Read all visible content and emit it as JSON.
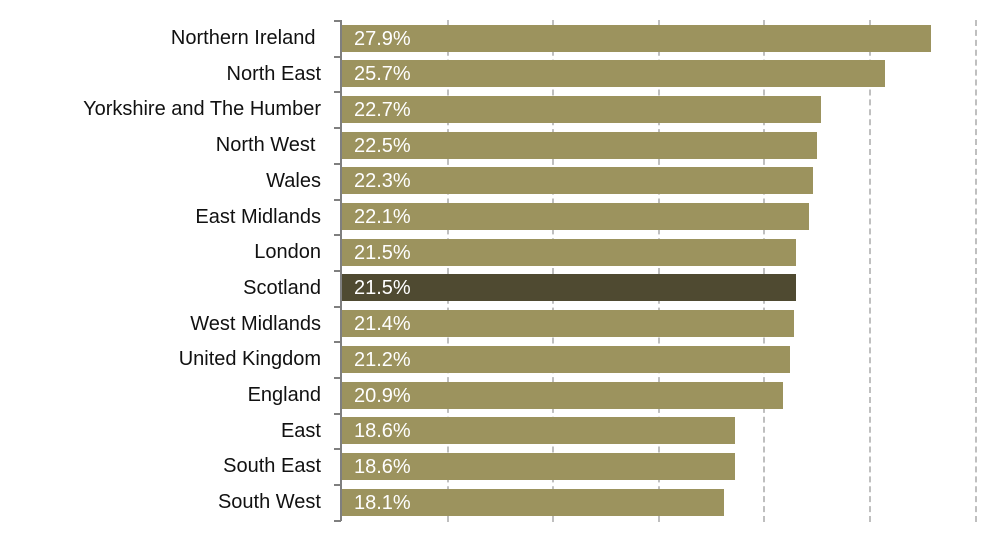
{
  "chart_data": {
    "type": "bar",
    "orientation": "horizontal",
    "title": "",
    "xlabel": "",
    "ylabel": "",
    "xlim": [
      0,
      30
    ],
    "x_gridlines": [
      5,
      10,
      15,
      20,
      25,
      30
    ],
    "grid": true,
    "x_tick_labels_visible": false,
    "legend": null,
    "categories": [
      "Northern Ireland ",
      "North East",
      "Yorkshire and The Humber",
      "North West ",
      "Wales",
      "East Midlands",
      "London",
      "Scotland",
      "West Midlands",
      "United Kingdom",
      "England",
      "East",
      "South East",
      "South West"
    ],
    "values": [
      27.9,
      25.7,
      22.7,
      22.5,
      22.3,
      22.1,
      21.5,
      21.5,
      21.4,
      21.2,
      20.9,
      18.6,
      18.6,
      18.1
    ],
    "data_labels": [
      "27.9%",
      "25.7%",
      "22.7%",
      "22.5%",
      "22.3%",
      "22.1%",
      "21.5%",
      "21.5%",
      "21.4%",
      "21.2%",
      "20.9%",
      "18.6%",
      "18.6%",
      "18.1%"
    ],
    "highlighted_category": "Scotland",
    "colors": {
      "default": "#9C935E",
      "highlight": "#4F4A31"
    }
  }
}
